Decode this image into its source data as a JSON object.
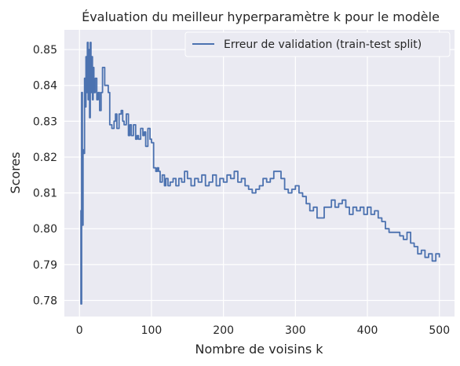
{
  "chart_data": {
    "type": "line",
    "title": "Évaluation du meilleur hyperparamètre k pour le modèle",
    "xlabel": "Nombre de voisins k",
    "ylabel": "Scores",
    "xlim": [
      -21,
      521
    ],
    "ylim": [
      0.7755,
      0.8555
    ],
    "xticks": [
      0,
      100,
      200,
      300,
      400,
      500
    ],
    "xtick_labels": [
      "0",
      "100",
      "200",
      "300",
      "400",
      "500"
    ],
    "yticks": [
      0.78,
      0.79,
      0.8,
      0.81,
      0.82,
      0.83,
      0.84,
      0.85
    ],
    "ytick_labels": [
      "0.78",
      "0.79",
      "0.80",
      "0.81",
      "0.82",
      "0.83",
      "0.84",
      "0.85"
    ],
    "grid": true,
    "legend": "top-right",
    "colors": {
      "background": "#eaeaf2",
      "line": "#4c72b0",
      "grid": "#ffffff"
    },
    "series": [
      {
        "name": "Erreur de validation (train-test split)",
        "x": [
          1,
          2,
          3,
          4,
          5,
          6,
          7,
          8,
          9,
          10,
          11,
          12,
          13,
          14,
          15,
          16,
          17,
          18,
          19,
          20,
          22,
          24,
          26,
          28,
          30,
          32,
          35,
          38,
          40,
          42,
          45,
          48,
          50,
          52,
          55,
          58,
          60,
          62,
          65,
          68,
          70,
          72,
          75,
          78,
          80,
          82,
          85,
          88,
          90,
          92,
          95,
          98,
          100,
          103,
          106,
          108,
          110,
          112,
          115,
          118,
          120,
          123,
          126,
          130,
          134,
          138,
          142,
          146,
          150,
          155,
          160,
          165,
          170,
          175,
          180,
          185,
          190,
          195,
          200,
          205,
          210,
          215,
          220,
          225,
          230,
          235,
          240,
          245,
          250,
          255,
          260,
          265,
          270,
          275,
          280,
          285,
          290,
          295,
          300,
          305,
          310,
          315,
          320,
          325,
          330,
          335,
          340,
          345,
          350,
          355,
          360,
          365,
          370,
          375,
          380,
          385,
          390,
          395,
          400,
          405,
          410,
          415,
          420,
          425,
          430,
          435,
          440,
          445,
          450,
          455,
          460,
          465,
          470,
          475,
          480,
          485,
          490,
          495,
          500
        ],
        "y": [
          0.805,
          0.779,
          0.838,
          0.801,
          0.822,
          0.821,
          0.842,
          0.834,
          0.848,
          0.838,
          0.852,
          0.836,
          0.85,
          0.831,
          0.852,
          0.838,
          0.848,
          0.836,
          0.845,
          0.838,
          0.842,
          0.836,
          0.838,
          0.833,
          0.838,
          0.845,
          0.84,
          0.84,
          0.838,
          0.829,
          0.828,
          0.83,
          0.832,
          0.828,
          0.832,
          0.833,
          0.83,
          0.829,
          0.832,
          0.826,
          0.829,
          0.826,
          0.829,
          0.825,
          0.826,
          0.825,
          0.828,
          0.826,
          0.827,
          0.823,
          0.828,
          0.825,
          0.824,
          0.817,
          0.816,
          0.817,
          0.816,
          0.813,
          0.815,
          0.812,
          0.814,
          0.812,
          0.813,
          0.814,
          0.812,
          0.814,
          0.813,
          0.816,
          0.814,
          0.812,
          0.814,
          0.813,
          0.815,
          0.812,
          0.813,
          0.815,
          0.812,
          0.814,
          0.813,
          0.815,
          0.814,
          0.816,
          0.813,
          0.814,
          0.812,
          0.811,
          0.81,
          0.811,
          0.812,
          0.814,
          0.813,
          0.814,
          0.816,
          0.816,
          0.814,
          0.811,
          0.81,
          0.811,
          0.812,
          0.81,
          0.809,
          0.807,
          0.805,
          0.806,
          0.803,
          0.803,
          0.806,
          0.806,
          0.808,
          0.806,
          0.807,
          0.808,
          0.806,
          0.804,
          0.806,
          0.805,
          0.806,
          0.804,
          0.806,
          0.804,
          0.805,
          0.803,
          0.802,
          0.8,
          0.799,
          0.799,
          0.799,
          0.798,
          0.797,
          0.799,
          0.796,
          0.795,
          0.793,
          0.794,
          0.792,
          0.793,
          0.791,
          0.793,
          0.792
        ]
      }
    ]
  }
}
